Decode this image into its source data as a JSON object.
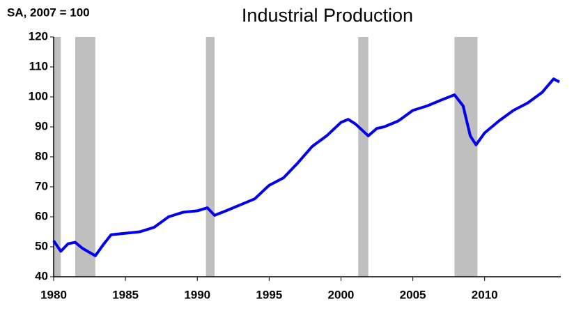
{
  "chart_data": {
    "type": "line",
    "title": "Industrial Production",
    "y_label": "SA, 2007 = 100",
    "x": [
      1980,
      1980.5,
      1981,
      1981.5,
      1982,
      1982.9,
      1983.5,
      1984,
      1985,
      1986,
      1987,
      1988,
      1989,
      1990,
      1990.7,
      1991.2,
      1992,
      1993,
      1994,
      1995,
      1996,
      1997,
      1998,
      1999,
      2000,
      2000.5,
      2001,
      2001.9,
      2002.5,
      2003,
      2004,
      2005,
      2006,
      2007,
      2007.9,
      2008.5,
      2009,
      2009.4,
      2010,
      2011,
      2012,
      2013,
      2014,
      2014.8,
      2015.2
    ],
    "series": [
      {
        "name": "Industrial Production",
        "color": "#0000ee",
        "values": [
          52,
          48.5,
          51,
          51.5,
          49.5,
          47,
          51,
          54,
          54.5,
          55,
          56.5,
          60,
          61.5,
          62,
          63,
          60.5,
          62,
          64,
          66,
          70.5,
          73,
          78,
          83.5,
          87,
          91.5,
          92.5,
          91,
          87,
          89.5,
          90,
          92,
          95.5,
          97,
          99,
          100.7,
          97,
          87,
          84,
          88,
          92,
          95.5,
          98,
          101.5,
          106,
          105
        ]
      }
    ],
    "recessions": [
      [
        1980,
        1980.5
      ],
      [
        1981.5,
        1982.9
      ],
      [
        1990.6,
        1991.2
      ],
      [
        2001.2,
        2001.9
      ],
      [
        2007.9,
        2009.5
      ]
    ],
    "recession_color": "#bfbfbf",
    "xlim": [
      1980,
      2015.3
    ],
    "xticks": [
      1980,
      1985,
      1990,
      1995,
      2000,
      2005,
      2010
    ],
    "ylim": [
      40,
      120
    ],
    "yticks": [
      40,
      50,
      60,
      70,
      80,
      90,
      100,
      110,
      120
    ]
  }
}
